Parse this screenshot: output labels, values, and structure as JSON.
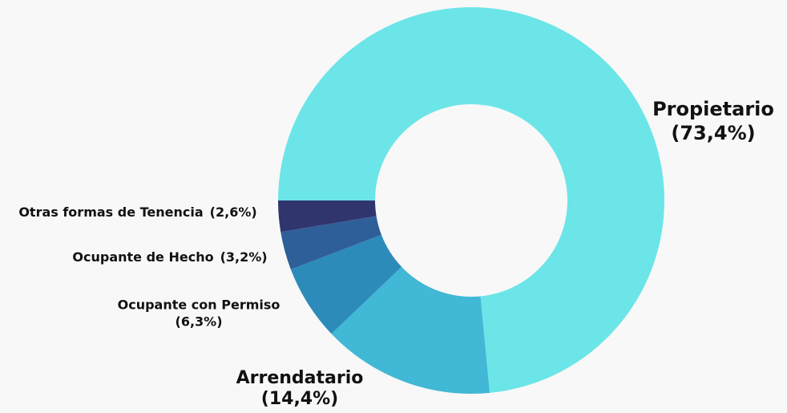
{
  "chart_data": {
    "type": "donut",
    "categories": [
      "Propietario",
      "Arrendatario",
      "Ocupante con Permiso",
      "Ocupante de Hecho",
      "Otras formas de Tenencia"
    ],
    "values": [
      73.4,
      14.4,
      6.3,
      3.2,
      2.6
    ],
    "value_labels": [
      "(73,4%)",
      "(14,4%)",
      "(6,3%)",
      "(3,2%)",
      "(2,6%)"
    ],
    "colors": [
      "#6ce5e8",
      "#41b8d5",
      "#2d8bba",
      "#2f5f98",
      "#31356e"
    ]
  }
}
